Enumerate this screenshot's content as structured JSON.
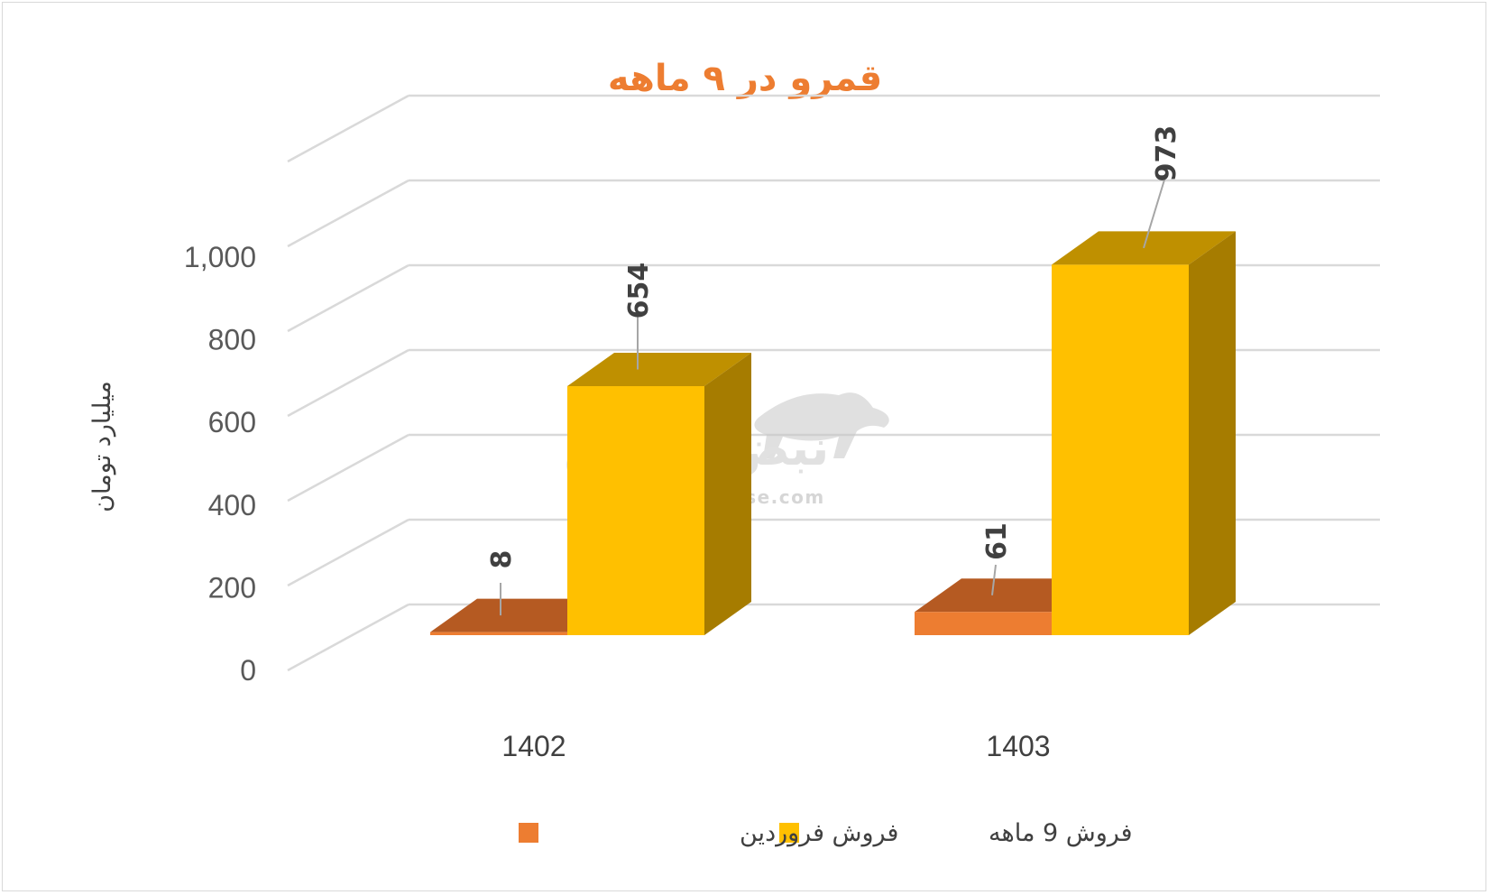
{
  "chart_data": {
    "type": "bar",
    "title": "قمرو در ۹ ماهه",
    "ylabel": "میلیارد تومان",
    "categories": [
      "1402",
      "1403"
    ],
    "series": [
      {
        "name": "فروش فروردین",
        "values": [
          8,
          61
        ],
        "color": "#ed7d31",
        "top_color": "#b55a22"
      },
      {
        "name": "فروش 9  ماهه",
        "values": [
          654,
          973
        ],
        "color": "#ffc000",
        "top_color": "#bf9000",
        "side_color": "#a67c00"
      }
    ],
    "yticks": [
      "0",
      "200",
      "400",
      "600",
      "800",
      "1,000"
    ],
    "ytick_values": [
      0,
      200,
      400,
      600,
      800,
      1000
    ],
    "ylim": [
      0,
      1000
    ],
    "grid": true,
    "legend_position": "bottom"
  },
  "watermark": {
    "text_fa": "نبض بورس",
    "text_en": "nabzebourse.com"
  }
}
